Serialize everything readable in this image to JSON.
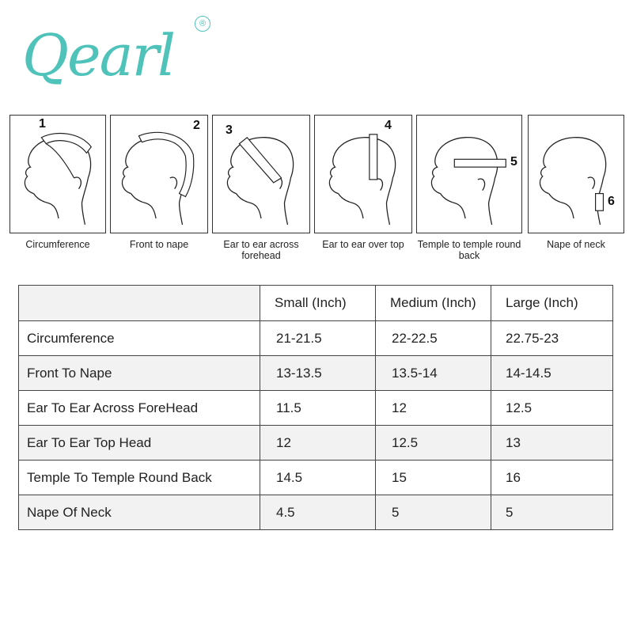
{
  "brand": {
    "name": "Qearl",
    "registered_mark": "®",
    "color": "#4fc3ba"
  },
  "diagrams": [
    {
      "number": "1",
      "caption": "Circumference"
    },
    {
      "number": "2",
      "caption": "Front to nape"
    },
    {
      "number": "3",
      "caption": "Ear to ear across forehead"
    },
    {
      "number": "4",
      "caption": "Ear to ear over top"
    },
    {
      "number": "5",
      "caption": "Temple to temple round back"
    },
    {
      "number": "6",
      "caption": "Nape of neck"
    }
  ],
  "table": {
    "headers": [
      "",
      "Small (Inch)",
      "Medium (Inch)",
      "Large (Inch)"
    ],
    "rows": [
      {
        "label": "Circumference",
        "small": "21-21.5",
        "medium": "22-22.5",
        "large": "22.75-23"
      },
      {
        "label": "Front To Nape",
        "small": "13-13.5",
        "medium": "13.5-14",
        "large": "14-14.5"
      },
      {
        "label": "Ear To Ear Across ForeHead",
        "small": "11.5",
        "medium": "12",
        "large": "12.5"
      },
      {
        "label": "Ear To Ear Top Head",
        "small": "12",
        "medium": "12.5",
        "large": "13"
      },
      {
        "label": "Temple To Temple Round Back",
        "small": "14.5",
        "medium": "15",
        "large": "16"
      },
      {
        "label": "Nape Of Neck",
        "small": "4.5",
        "medium": "5",
        "large": "5"
      }
    ]
  }
}
